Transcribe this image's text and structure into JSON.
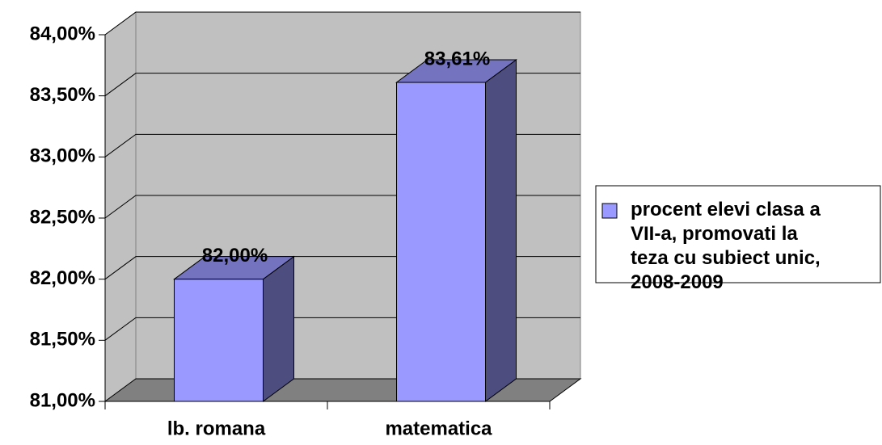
{
  "chart_data": {
    "type": "bar3d",
    "categories": [
      "lb. romana",
      "matematica"
    ],
    "series": [
      {
        "name": "procent elevi clasa a VII-a, promovati la teza cu subiect unic, 2008-2009",
        "color": "#9999ff",
        "values": [
          82.0,
          83.61
        ],
        "value_labels": [
          "82,00%",
          "83,61%"
        ]
      }
    ],
    "ylim": [
      81,
      84
    ],
    "yticks": [
      {
        "value": 81,
        "label": "81,00%"
      },
      {
        "value": 81.5,
        "label": "81,50%"
      },
      {
        "value": 82,
        "label": "82,00%"
      },
      {
        "value": 82.5,
        "label": "82,50%"
      },
      {
        "value": 83,
        "label": "83,00%"
      },
      {
        "value": 83.5,
        "label": "83,50%"
      },
      {
        "value": 84,
        "label": "84,00%"
      }
    ],
    "grid": true,
    "legend": "right"
  }
}
